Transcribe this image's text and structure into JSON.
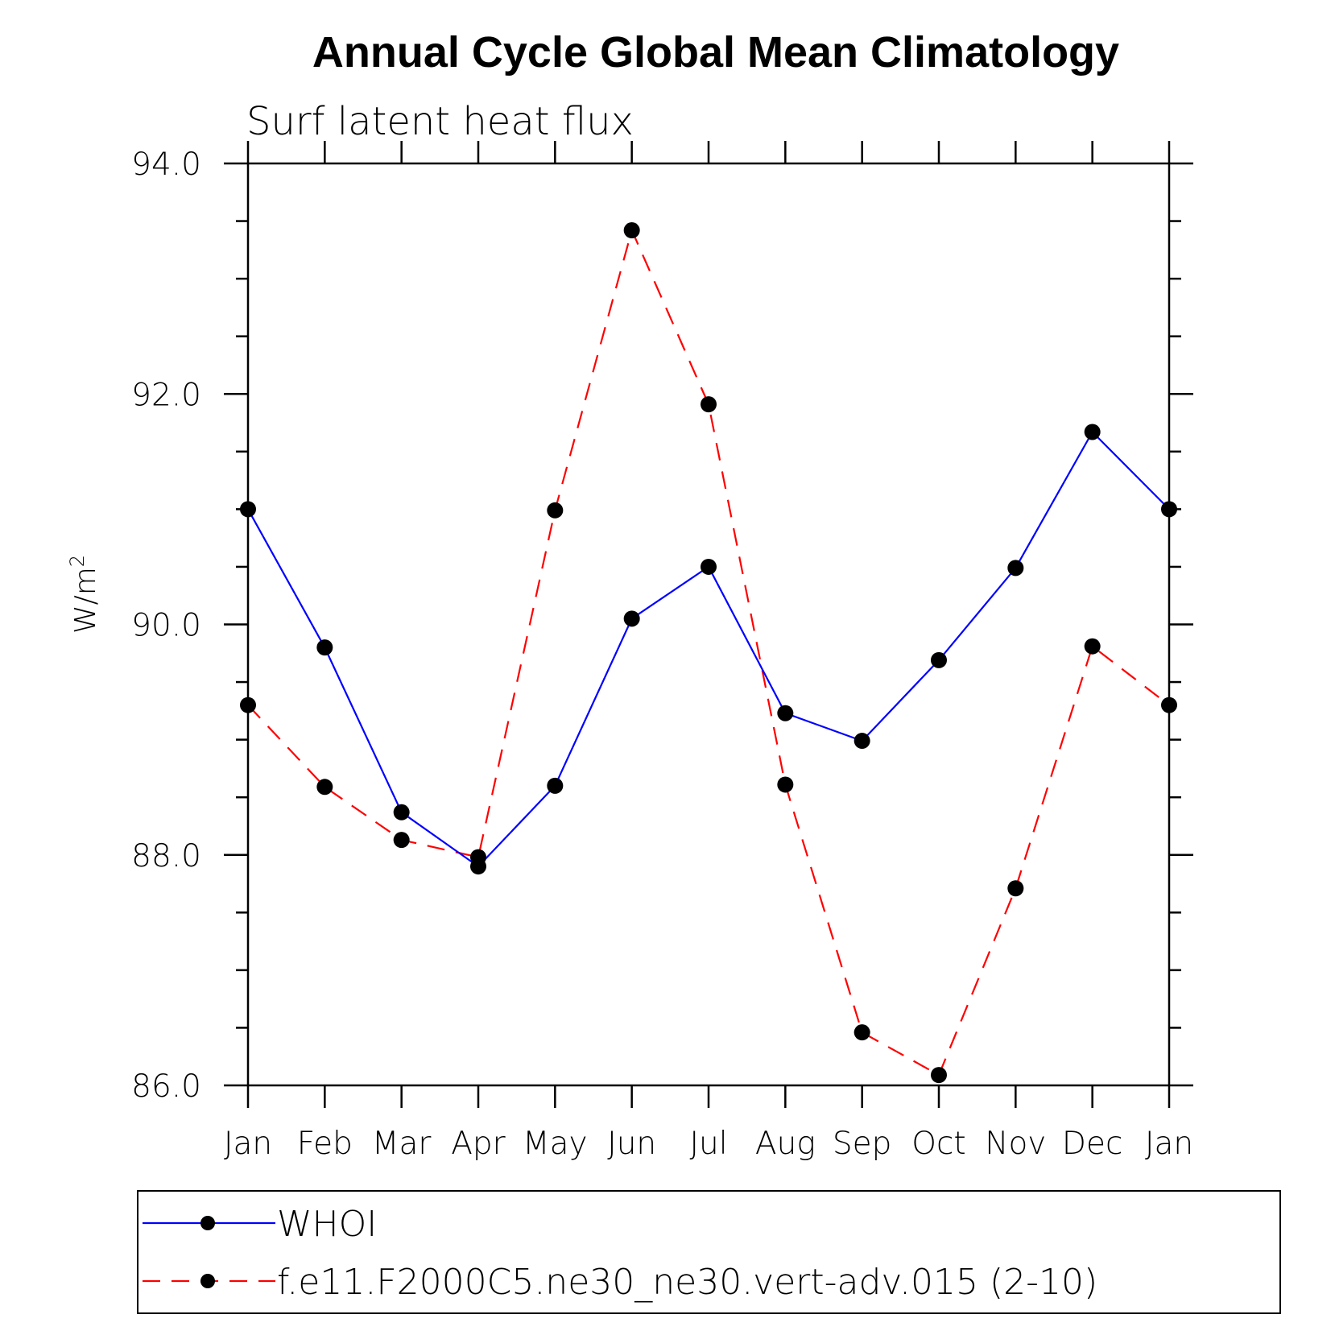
{
  "chart_data": {
    "type": "line",
    "title": "Annual Cycle Global Mean Climatology",
    "subtitle": "Surf latent heat flux",
    "ylabel": "W/m",
    "ylabel_superscript": "2",
    "xlabel": "",
    "ylim": [
      86.0,
      94.0
    ],
    "yticks": [
      "86.0",
      "88.0",
      "90.0",
      "92.0",
      "94.0"
    ],
    "categories": [
      "Jan",
      "Feb",
      "Mar",
      "Apr",
      "May",
      "Jun",
      "Jul",
      "Aug",
      "Sep",
      "Oct",
      "Nov",
      "Dec",
      "Jan"
    ],
    "series": [
      {
        "name": "WHOI",
        "color": "#0000ff",
        "style": "solid",
        "marker": "circle",
        "values": [
          91.0,
          89.8,
          88.37,
          87.9,
          88.6,
          90.05,
          90.5,
          89.23,
          88.99,
          89.69,
          90.49,
          91.67,
          91.0
        ]
      },
      {
        "name": "f.e11.F2000C5.ne30_ne30.vert-adv.015 (2-10)",
        "color": "#ff0000",
        "style": "dashed",
        "marker": "circle",
        "values": [
          89.3,
          88.59,
          88.13,
          87.98,
          90.99,
          93.42,
          91.91,
          88.61,
          86.46,
          86.09,
          87.71,
          89.81,
          89.3
        ]
      }
    ],
    "legend_position": "bottom",
    "grid": false
  }
}
